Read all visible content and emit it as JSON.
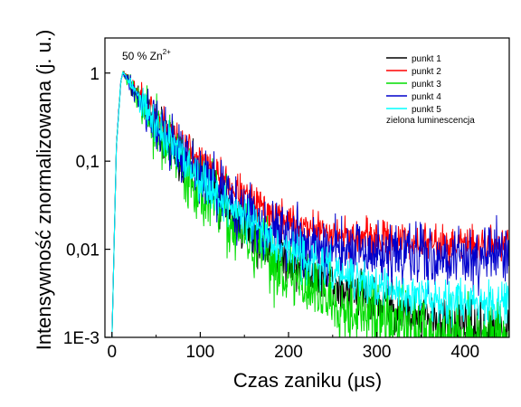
{
  "chart_data": {
    "type": "line",
    "yscale": "log",
    "xlabel_main": "Czas zaniku (",
    "xlabel_unit": "µs",
    "xlabel_close": ")",
    "ylabel": "Intensywność znormalizowana (j. u.)",
    "annotation": {
      "prefix": "50 % Zn",
      "superscript": "2+"
    },
    "legend_note": "zielona luminescencja",
    "xlim": [
      -8,
      450
    ],
    "ylim": [
      0.001,
      2.5
    ],
    "xticks": [
      0,
      100,
      200,
      300,
      400
    ],
    "xtick_labels": [
      "0",
      "100",
      "200",
      "300",
      "400"
    ],
    "yticks": [
      0.001,
      0.01,
      0.1,
      1
    ],
    "ytick_labels": [
      "1E-3",
      "0,01",
      "0,1",
      "1"
    ],
    "grid": false,
    "legend_position": "top-right",
    "series": [
      {
        "name": "punkt 1",
        "color": "#000000",
        "noise": 0.14,
        "seed": 11,
        "x": [
          0,
          5,
          10,
          12,
          15,
          20,
          30,
          40,
          50,
          60,
          80,
          100,
          120,
          140,
          160,
          180,
          200,
          220,
          240,
          260,
          280,
          300,
          320,
          340,
          360,
          380,
          400,
          420,
          450
        ],
        "y": [
          0.001,
          0.15,
          0.8,
          1.0,
          0.95,
          0.78,
          0.52,
          0.36,
          0.25,
          0.18,
          0.1,
          0.058,
          0.036,
          0.023,
          0.015,
          0.0105,
          0.0076,
          0.0058,
          0.0046,
          0.0037,
          0.003,
          0.0025,
          0.0021,
          0.0018,
          0.0016,
          0.0014,
          0.0013,
          0.0012,
          0.0011
        ]
      },
      {
        "name": "punkt 2",
        "color": "#ff0000",
        "noise": 0.1,
        "seed": 23,
        "x": [
          0,
          5,
          10,
          12,
          15,
          20,
          30,
          40,
          50,
          60,
          80,
          100,
          120,
          140,
          160,
          180,
          200,
          220,
          240,
          260,
          280,
          300,
          320,
          340,
          360,
          380,
          400,
          420,
          450
        ],
        "y": [
          0.001,
          0.15,
          0.8,
          1.0,
          0.97,
          0.82,
          0.6,
          0.45,
          0.34,
          0.26,
          0.16,
          0.1,
          0.067,
          0.047,
          0.034,
          0.026,
          0.021,
          0.018,
          0.016,
          0.0145,
          0.0135,
          0.013,
          0.0125,
          0.012,
          0.0118,
          0.0115,
          0.0115,
          0.0115,
          0.0115
        ]
      },
      {
        "name": "punkt 3",
        "color": "#00dd00",
        "noise": 0.2,
        "seed": 37,
        "x": [
          0,
          5,
          10,
          12,
          15,
          20,
          30,
          40,
          50,
          60,
          80,
          100,
          120,
          140,
          160,
          180,
          200,
          220,
          240,
          260,
          280,
          300,
          320,
          340,
          360,
          380,
          400,
          420,
          450
        ],
        "y": [
          0.001,
          0.15,
          0.8,
          1.0,
          0.94,
          0.76,
          0.5,
          0.34,
          0.23,
          0.16,
          0.085,
          0.047,
          0.028,
          0.017,
          0.011,
          0.0075,
          0.0053,
          0.0039,
          0.003,
          0.0024,
          0.002,
          0.0017,
          0.0015,
          0.0013,
          0.0012,
          0.0011,
          0.00105,
          0.001,
          0.001
        ]
      },
      {
        "name": "punkt 4",
        "color": "#0000cc",
        "noise": 0.17,
        "seed": 41,
        "x": [
          0,
          5,
          10,
          12,
          15,
          20,
          30,
          40,
          50,
          60,
          80,
          100,
          120,
          140,
          160,
          180,
          200,
          220,
          240,
          260,
          280,
          300,
          320,
          340,
          360,
          380,
          400,
          420,
          450
        ],
        "y": [
          0.001,
          0.15,
          0.8,
          1.0,
          0.95,
          0.78,
          0.53,
          0.38,
          0.27,
          0.2,
          0.115,
          0.07,
          0.045,
          0.031,
          0.022,
          0.017,
          0.0135,
          0.0115,
          0.0102,
          0.0095,
          0.009,
          0.0088,
          0.0086,
          0.0085,
          0.0084,
          0.0083,
          0.0083,
          0.0083,
          0.0083
        ]
      },
      {
        "name": "punkt 5",
        "color": "#00ffff",
        "noise": 0.12,
        "seed": 53,
        "x": [
          0,
          5,
          10,
          12,
          15,
          20,
          30,
          40,
          50,
          60,
          80,
          100,
          120,
          140,
          160,
          180,
          200,
          220,
          240,
          260,
          280,
          300,
          320,
          340,
          360,
          380,
          400,
          420,
          450
        ],
        "y": [
          0.001,
          0.15,
          0.8,
          1.0,
          0.95,
          0.78,
          0.53,
          0.37,
          0.26,
          0.19,
          0.108,
          0.065,
          0.041,
          0.027,
          0.0185,
          0.0135,
          0.01,
          0.0078,
          0.0062,
          0.0051,
          0.0043,
          0.0037,
          0.0033,
          0.003,
          0.0028,
          0.0027,
          0.0026,
          0.0026,
          0.0026
        ]
      }
    ]
  }
}
